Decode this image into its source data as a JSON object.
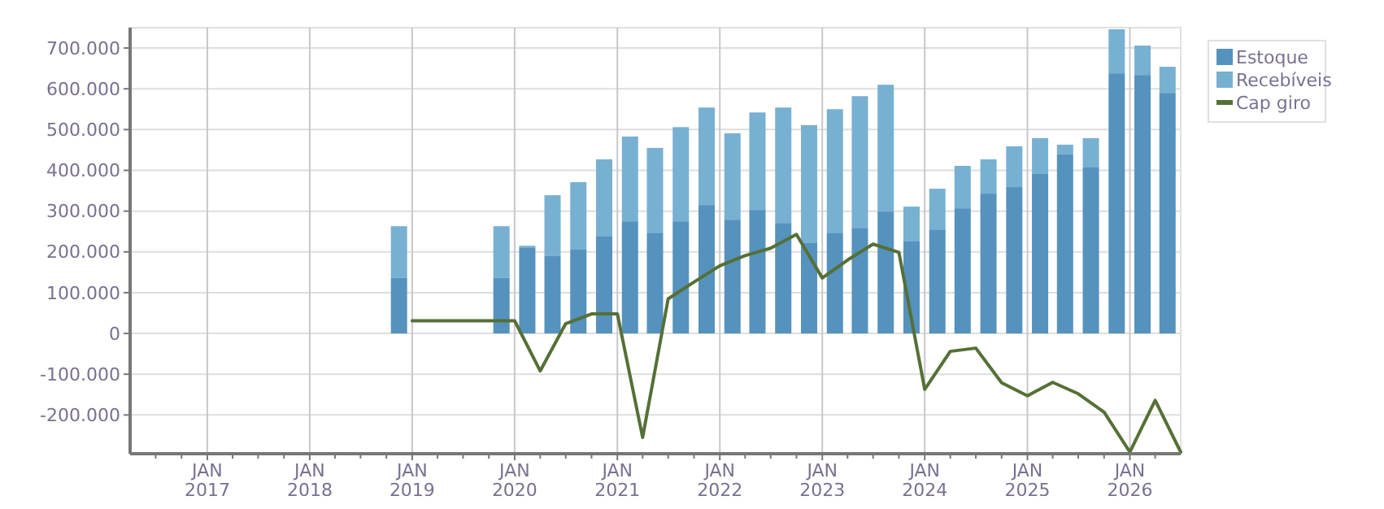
{
  "chart_data": {
    "type": "bar",
    "stacked": true,
    "legend": "top right",
    "grid": true,
    "marker": "none",
    "line_style": "solid",
    "xlim": [
      "2016-04-01",
      "2026-07-01"
    ],
    "xticks": [
      {
        "value": "2016-07-01",
        "label": null
      },
      {
        "value": "2016-10-01",
        "label": null
      },
      {
        "value": "2017-01-01",
        "label": "JAN 2017"
      },
      {
        "value": "2017-04-01",
        "label": null
      },
      {
        "value": "2017-07-01",
        "label": null
      },
      {
        "value": "2017-10-01",
        "label": null
      },
      {
        "value": "2018-01-01",
        "label": "JAN 2018"
      },
      {
        "value": "2018-04-01",
        "label": null
      },
      {
        "value": "2018-07-01",
        "label": null
      },
      {
        "value": "2018-10-01",
        "label": null
      },
      {
        "value": "2019-01-01",
        "label": "JAN 2019"
      },
      {
        "value": "2019-04-01",
        "label": null
      },
      {
        "value": "2019-07-01",
        "label": null
      },
      {
        "value": "2019-10-01",
        "label": null
      },
      {
        "value": "2020-01-01",
        "label": "JAN 2020"
      },
      {
        "value": "2020-04-01",
        "label": null
      },
      {
        "value": "2020-07-01",
        "label": null
      },
      {
        "value": "2020-10-01",
        "label": null
      },
      {
        "value": "2021-01-01",
        "label": "JAN 2021"
      },
      {
        "value": "2021-04-01",
        "label": null
      },
      {
        "value": "2021-07-01",
        "label": null
      },
      {
        "value": "2021-10-01",
        "label": null
      },
      {
        "value": "2022-01-01",
        "label": "JAN 2022"
      },
      {
        "value": "2022-04-01",
        "label": null
      },
      {
        "value": "2022-07-01",
        "label": null
      },
      {
        "value": "2022-10-01",
        "label": null
      },
      {
        "value": "2023-01-01",
        "label": "JAN 2023"
      },
      {
        "value": "2023-04-01",
        "label": null
      },
      {
        "value": "2023-07-01",
        "label": null
      },
      {
        "value": "2023-10-01",
        "label": null
      },
      {
        "value": "2024-01-01",
        "label": "JAN 2024"
      },
      {
        "value": "2024-04-01",
        "label": null
      },
      {
        "value": "2024-07-01",
        "label": null
      },
      {
        "value": "2024-10-01",
        "label": null
      },
      {
        "value": "2025-01-01",
        "label": "JAN 2025"
      },
      {
        "value": "2025-04-01",
        "label": null
      },
      {
        "value": "2025-07-01",
        "label": null
      },
      {
        "value": "2025-10-01",
        "label": null
      },
      {
        "value": "2026-01-01",
        "label": "JAN 2026"
      },
      {
        "value": "2026-04-01",
        "label": null
      }
    ],
    "ylim": [
      -295000,
      750000
    ],
    "yticks": [
      {
        "value": -200000,
        "label": "-200.000"
      },
      {
        "value": -100000,
        "label": "-100.000"
      },
      0,
      {
        "value": 100000,
        "label": "100.000"
      },
      {
        "value": 200000,
        "label": "200.000"
      },
      {
        "value": 300000,
        "label": "300.000"
      },
      {
        "value": 400000,
        "label": "400.000"
      },
      {
        "value": 500000,
        "label": "500.000"
      },
      {
        "value": 600000,
        "label": "600.000"
      },
      {
        "value": 700000,
        "label": "700.000"
      }
    ],
    "x": [
      "2018-11-15",
      "2019-11-15",
      "2020-02-15",
      "2020-05-15",
      "2020-08-15",
      "2020-11-15",
      "2021-02-15",
      "2021-05-15",
      "2021-08-15",
      "2021-11-15",
      "2022-02-15",
      "2022-05-15",
      "2022-08-15",
      "2022-11-15",
      "2023-02-15",
      "2023-05-15",
      "2023-08-15",
      "2023-11-15",
      "2024-02-15",
      "2024-05-15",
      "2024-08-15",
      "2024-11-15",
      "2025-02-15",
      "2025-05-15",
      "2025-08-15",
      "2025-11-15",
      "2026-02-15",
      "2026-05-15"
    ],
    "series": [
      {
        "name": "Estoque",
        "color": "#5592be",
        "values": [
          136000,
          136000,
          211000,
          191000,
          207000,
          239000,
          275000,
          247000,
          275000,
          315000,
          279000,
          303000,
          271000,
          223000,
          247000,
          259000,
          299000,
          227000,
          255000,
          307000,
          343000,
          359000,
          391000,
          439000,
          407000,
          638000,
          634000,
          590000
        ]
      },
      {
        "name": "Recebíveis",
        "color": "#78b0d2",
        "values": [
          127000,
          127000,
          4000,
          148000,
          164000,
          188000,
          208000,
          208000,
          231000,
          239000,
          212000,
          239000,
          283000,
          288000,
          303000,
          323000,
          311000,
          84000,
          100000,
          104000,
          84000,
          100000,
          88000,
          24000,
          72000,
          108000,
          72000,
          64000
        ]
      },
      {
        "name": "Cap giro",
        "type": "line",
        "color": "#557036",
        "x": [
          "2019-01-01",
          "2020-01-01",
          "2020-04-01",
          "2020-07-01",
          "2020-10-01",
          "2021-01-01",
          "2021-04-01",
          "2021-07-01",
          "2021-10-01",
          "2022-01-01",
          "2022-04-01",
          "2022-07-01",
          "2022-10-01",
          "2023-01-01",
          "2023-04-01",
          "2023-07-01",
          "2023-10-01",
          "2024-01-01",
          "2024-04-01",
          "2024-07-01",
          "2024-10-01",
          "2025-01-01",
          "2025-04-01",
          "2025-07-01",
          "2025-10-01",
          "2026-01-01",
          "2026-04-01",
          "2026-07-01"
        ],
        "values": [
          31000,
          31000,
          -92000,
          24000,
          48000,
          48000,
          -255000,
          85000,
          126000,
          166000,
          191000,
          209000,
          243000,
          136000,
          180000,
          219000,
          199000,
          -137000,
          -44000,
          -36000,
          -121000,
          -153000,
          -120000,
          -148000,
          -193000,
          -291000,
          -164000,
          -291000
        ]
      }
    ]
  }
}
